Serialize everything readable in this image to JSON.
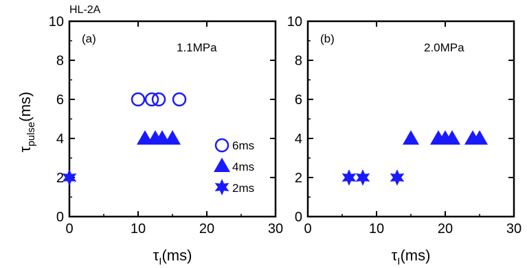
{
  "header": {
    "label": "HL-2A"
  },
  "ylabel": {
    "main": "τ",
    "sub": "pulse",
    "unit": "(ms)"
  },
  "legend": [
    {
      "marker": "circle",
      "label": "6ms"
    },
    {
      "marker": "triangle",
      "label": "4ms"
    },
    {
      "marker": "star",
      "label": "2ms"
    }
  ],
  "chart_data": [
    {
      "type": "scatter",
      "panel_label": "(a)",
      "annotation": "1.1MPa",
      "xlabel": {
        "main": "τ",
        "sub": "I",
        "unit": "(ms)"
      },
      "xlim": [
        0,
        30
      ],
      "ylim": [
        0,
        10
      ],
      "xticks": [
        "0",
        "10",
        "20",
        "30"
      ],
      "yticks": [
        "0",
        "2",
        "4",
        "6",
        "8",
        "10"
      ],
      "color": "#1a1aff",
      "series": [
        {
          "name": "6ms",
          "marker": "circle",
          "points": [
            [
              10,
              6
            ],
            [
              12,
              6
            ],
            [
              13,
              6
            ],
            [
              16,
              6
            ]
          ]
        },
        {
          "name": "4ms",
          "marker": "triangle",
          "points": [
            [
              11,
              4
            ],
            [
              12.5,
              4
            ],
            [
              13.5,
              4
            ],
            [
              15,
              4
            ]
          ]
        },
        {
          "name": "2ms",
          "marker": "star",
          "points": [
            [
              0,
              2
            ]
          ]
        }
      ]
    },
    {
      "type": "scatter",
      "panel_label": "(b)",
      "annotation": "2.0MPa",
      "xlabel": {
        "main": "τ",
        "sub": "I",
        "unit": "(ms)"
      },
      "xlim": [
        0,
        30
      ],
      "ylim": [
        0,
        10
      ],
      "xticks": [
        "0",
        "10",
        "20",
        "30"
      ],
      "yticks": [
        "0",
        "2",
        "4",
        "6",
        "8",
        "10"
      ],
      "color": "#1a1aff",
      "series": [
        {
          "name": "4ms",
          "marker": "triangle",
          "points": [
            [
              15,
              4
            ],
            [
              19,
              4
            ],
            [
              20,
              4
            ],
            [
              21,
              4
            ],
            [
              24,
              4
            ],
            [
              25,
              4
            ]
          ]
        },
        {
          "name": "2ms",
          "marker": "star",
          "points": [
            [
              6,
              2
            ],
            [
              8,
              2
            ],
            [
              13,
              2
            ]
          ]
        }
      ]
    }
  ]
}
